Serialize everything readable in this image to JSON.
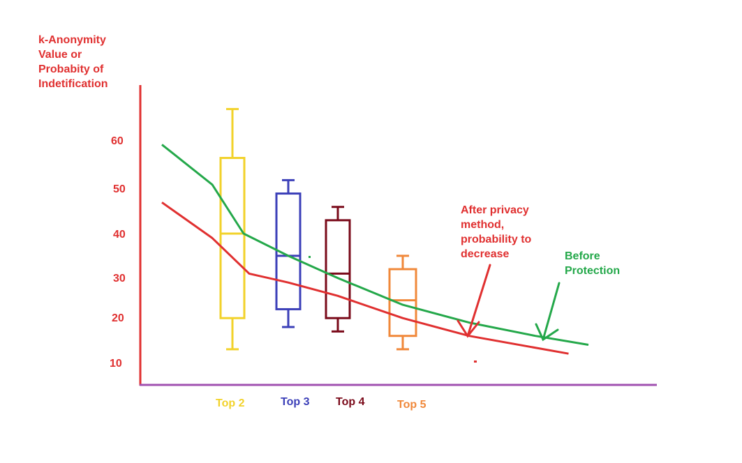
{
  "chart_data": {
    "type": "box+line",
    "ylabel_lines": [
      "k-Anonymity",
      "Value or",
      "Probabity of",
      "Indetification"
    ],
    "yticks": [
      60,
      50,
      40,
      30,
      20,
      10
    ],
    "categories": [
      {
        "label": "Top 2",
        "color": "#f2d22a",
        "box": {
          "min": 13,
          "q1": 20,
          "median": 39,
          "q3": 56,
          "max": 67
        }
      },
      {
        "label": "Top 3",
        "color": "#3b3fb8",
        "box": {
          "min": 18,
          "q1": 22,
          "median": 34,
          "q3": 48,
          "max": 51
        }
      },
      {
        "label": "Top 4",
        "color": "#7a0a1a",
        "box": {
          "min": 17,
          "q1": 20,
          "median": 30,
          "q3": 42,
          "max": 45
        }
      },
      {
        "label": "Top 5",
        "color": "#f0883a",
        "box": {
          "min": 13,
          "q1": 16,
          "median": 24,
          "q3": 31,
          "max": 34
        }
      }
    ],
    "series": [
      {
        "color": "#24a84a",
        "points": [
          [
            0.3,
            59
          ],
          [
            0.8,
            50
          ],
          [
            1.2,
            39
          ],
          [
            2.0,
            34
          ],
          [
            3.0,
            29
          ],
          [
            4.0,
            23
          ],
          [
            5.0,
            19
          ],
          [
            6.0,
            16
          ],
          [
            6.8,
            14
          ]
        ]
      },
      {
        "color": "#e03030",
        "points": [
          [
            0.3,
            46
          ],
          [
            0.8,
            38
          ],
          [
            1.3,
            30
          ],
          [
            2.0,
            28
          ],
          [
            3.0,
            25
          ],
          [
            4.0,
            20
          ],
          [
            5.0,
            16
          ],
          [
            6.5,
            12
          ]
        ]
      }
    ],
    "annotations": [
      {
        "lines": [
          "After privacy",
          "method,",
          "probability to",
          "decrease"
        ],
        "color": "#e03030"
      },
      {
        "lines": [
          "Before",
          "Protection"
        ],
        "color": "#24a84a"
      }
    ],
    "axis_colors": {
      "y": "#e03030",
      "x": "#a050b0"
    }
  }
}
